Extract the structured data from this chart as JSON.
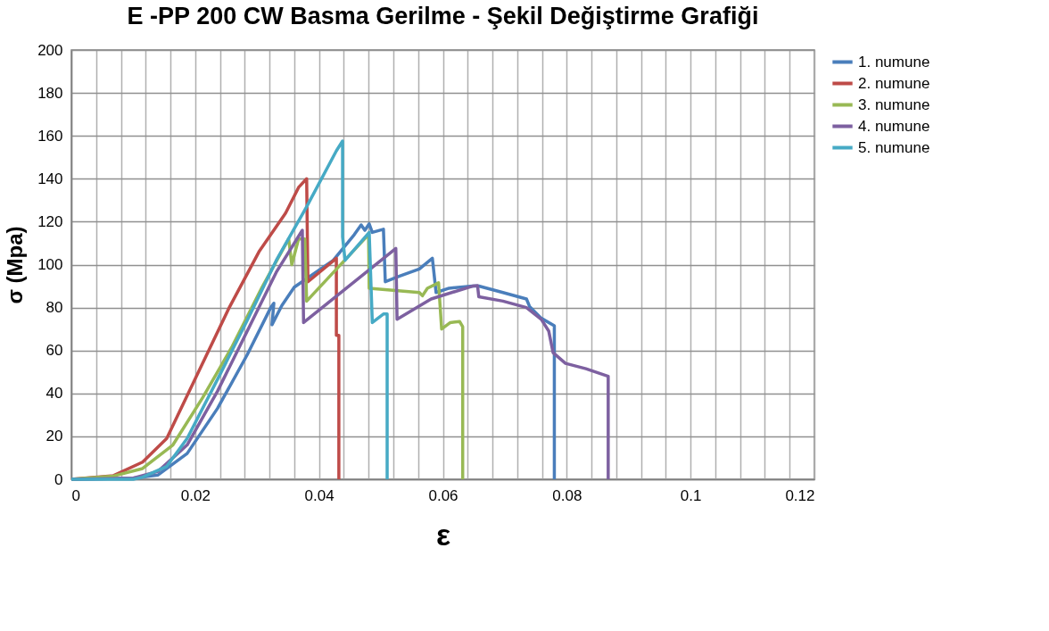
{
  "chart_data": {
    "type": "line",
    "title": "E -PP 200 CW Basma Gerilme - Şekil Değiştirme Grafiği",
    "xlabel": "ε",
    "ylabel": "σ (Mpa)",
    "xlim": [
      0,
      0.12
    ],
    "ylim": [
      0,
      200
    ],
    "xticks": [
      0,
      {
        "value": 0.004,
        "label": null
      },
      {
        "value": 0.008,
        "label": null
      },
      {
        "value": 0.012,
        "label": null
      },
      {
        "value": 0.016,
        "label": null
      },
      0.02,
      {
        "value": 0.024,
        "label": null
      },
      {
        "value": 0.028,
        "label": null
      },
      {
        "value": 0.032,
        "label": null
      },
      {
        "value": 0.036,
        "label": null
      },
      0.04,
      {
        "value": 0.044,
        "label": null
      },
      {
        "value": 0.048,
        "label": null
      },
      {
        "value": 0.052,
        "label": null
      },
      {
        "value": 0.056,
        "label": null
      },
      0.06,
      {
        "value": 0.064,
        "label": null
      },
      {
        "value": 0.068,
        "label": null
      },
      {
        "value": 0.072,
        "label": null
      },
      {
        "value": 0.076,
        "label": null
      },
      0.08,
      {
        "value": 0.084,
        "label": null
      },
      {
        "value": 0.088,
        "label": null
      },
      {
        "value": 0.092,
        "label": null
      },
      {
        "value": 0.096,
        "label": null
      },
      0.1,
      {
        "value": 0.104,
        "label": null
      },
      {
        "value": 0.108,
        "label": null
      },
      {
        "value": 0.112,
        "label": null
      },
      {
        "value": 0.116,
        "label": null
      },
      0.12
    ],
    "yticks": [
      0,
      20,
      40,
      60,
      80,
      100,
      120,
      140,
      160,
      180,
      200
    ],
    "grid": true,
    "legend": "right",
    "marker": "none",
    "line_style": "solid",
    "series": [
      {
        "name": "1. numune",
        "color": "#4a7ebb",
        "x": [
          0,
          0.01,
          0.014,
          0.0187,
          0.0236,
          0.0284,
          0.0322,
          0.0327,
          0.0324,
          0.034,
          0.036,
          0.0423,
          0.0457,
          0.0468,
          0.0474,
          0.0481,
          0.0486,
          0.0504,
          0.0507,
          0.0529,
          0.0562,
          0.0583,
          0.0589,
          0.061,
          0.0648,
          0.0658,
          0.0697,
          0.0735,
          0.074,
          0.0759,
          0.078,
          0.078
        ],
        "values": [
          0,
          0.5,
          2,
          12,
          33,
          58,
          80,
          82,
          72,
          81,
          89.5,
          102,
          114,
          118.5,
          116,
          119,
          115,
          116.5,
          92,
          94.5,
          98,
          103,
          87,
          89,
          90,
          90,
          87,
          84,
          80.5,
          75,
          71.5,
          0
        ]
      },
      {
        "name": "2. numune",
        "color": "#be4b48",
        "x": [
          0,
          0.0068,
          0.0115,
          0.0154,
          0.0202,
          0.0255,
          0.0303,
          0.0346,
          0.0367,
          0.038,
          0.0382,
          0.0428,
          0.0428,
          0.0432,
          0.0432
        ],
        "values": [
          0,
          1.7,
          8,
          19,
          48,
          80,
          106,
          124,
          136,
          140,
          92,
          103,
          67,
          67,
          0
        ]
      },
      {
        "name": "3. numune",
        "color": "#98b954",
        "x": [
          0,
          0.0068,
          0.0115,
          0.0164,
          0.0212,
          0.026,
          0.0308,
          0.0351,
          0.0356,
          0.0367,
          0.0377,
          0.038,
          0.048,
          0.0481,
          0.0562,
          0.0567,
          0.0575,
          0.0593,
          0.0598,
          0.0612,
          0.0627,
          0.0632,
          0.0632
        ],
        "values": [
          0,
          1.5,
          5,
          16,
          38,
          62,
          89.5,
          112,
          100,
          112,
          112,
          83,
          114,
          89,
          87,
          85.5,
          89,
          91.5,
          70,
          73,
          73.5,
          71,
          0
        ]
      },
      {
        "name": "4. numune",
        "color": "#7d60a0",
        "x": [
          0,
          0.01,
          0.014,
          0.0187,
          0.0236,
          0.0284,
          0.0331,
          0.0373,
          0.0375,
          0.0524,
          0.0526,
          0.0581,
          0.0648,
          0.0656,
          0.0658,
          0.0697,
          0.0735,
          0.0759,
          0.0771,
          0.0778,
          0.0798,
          0.0831,
          0.0867,
          0.0867
        ],
        "values": [
          0,
          0.5,
          3.7,
          16,
          41,
          69,
          96.5,
          116,
          73,
          107.5,
          74.5,
          84,
          90,
          90.2,
          85,
          83,
          80,
          74.5,
          69,
          59,
          54,
          51.5,
          48,
          0
        ]
      },
      {
        "name": "5. numune",
        "color": "#46aac5",
        "x": [
          0,
          0.01,
          0.0115,
          0.0154,
          0.0187,
          0.0236,
          0.0284,
          0.0331,
          0.038,
          0.0428,
          0.0438,
          0.0438,
          0.0442,
          0.0481,
          0.0486,
          0.0504,
          0.051,
          0.051
        ],
        "values": [
          0,
          0,
          1,
          6,
          19,
          46.5,
          74,
          102,
          127,
          153,
          157.6,
          113,
          102,
          115,
          73,
          77,
          77,
          0
        ]
      }
    ]
  }
}
